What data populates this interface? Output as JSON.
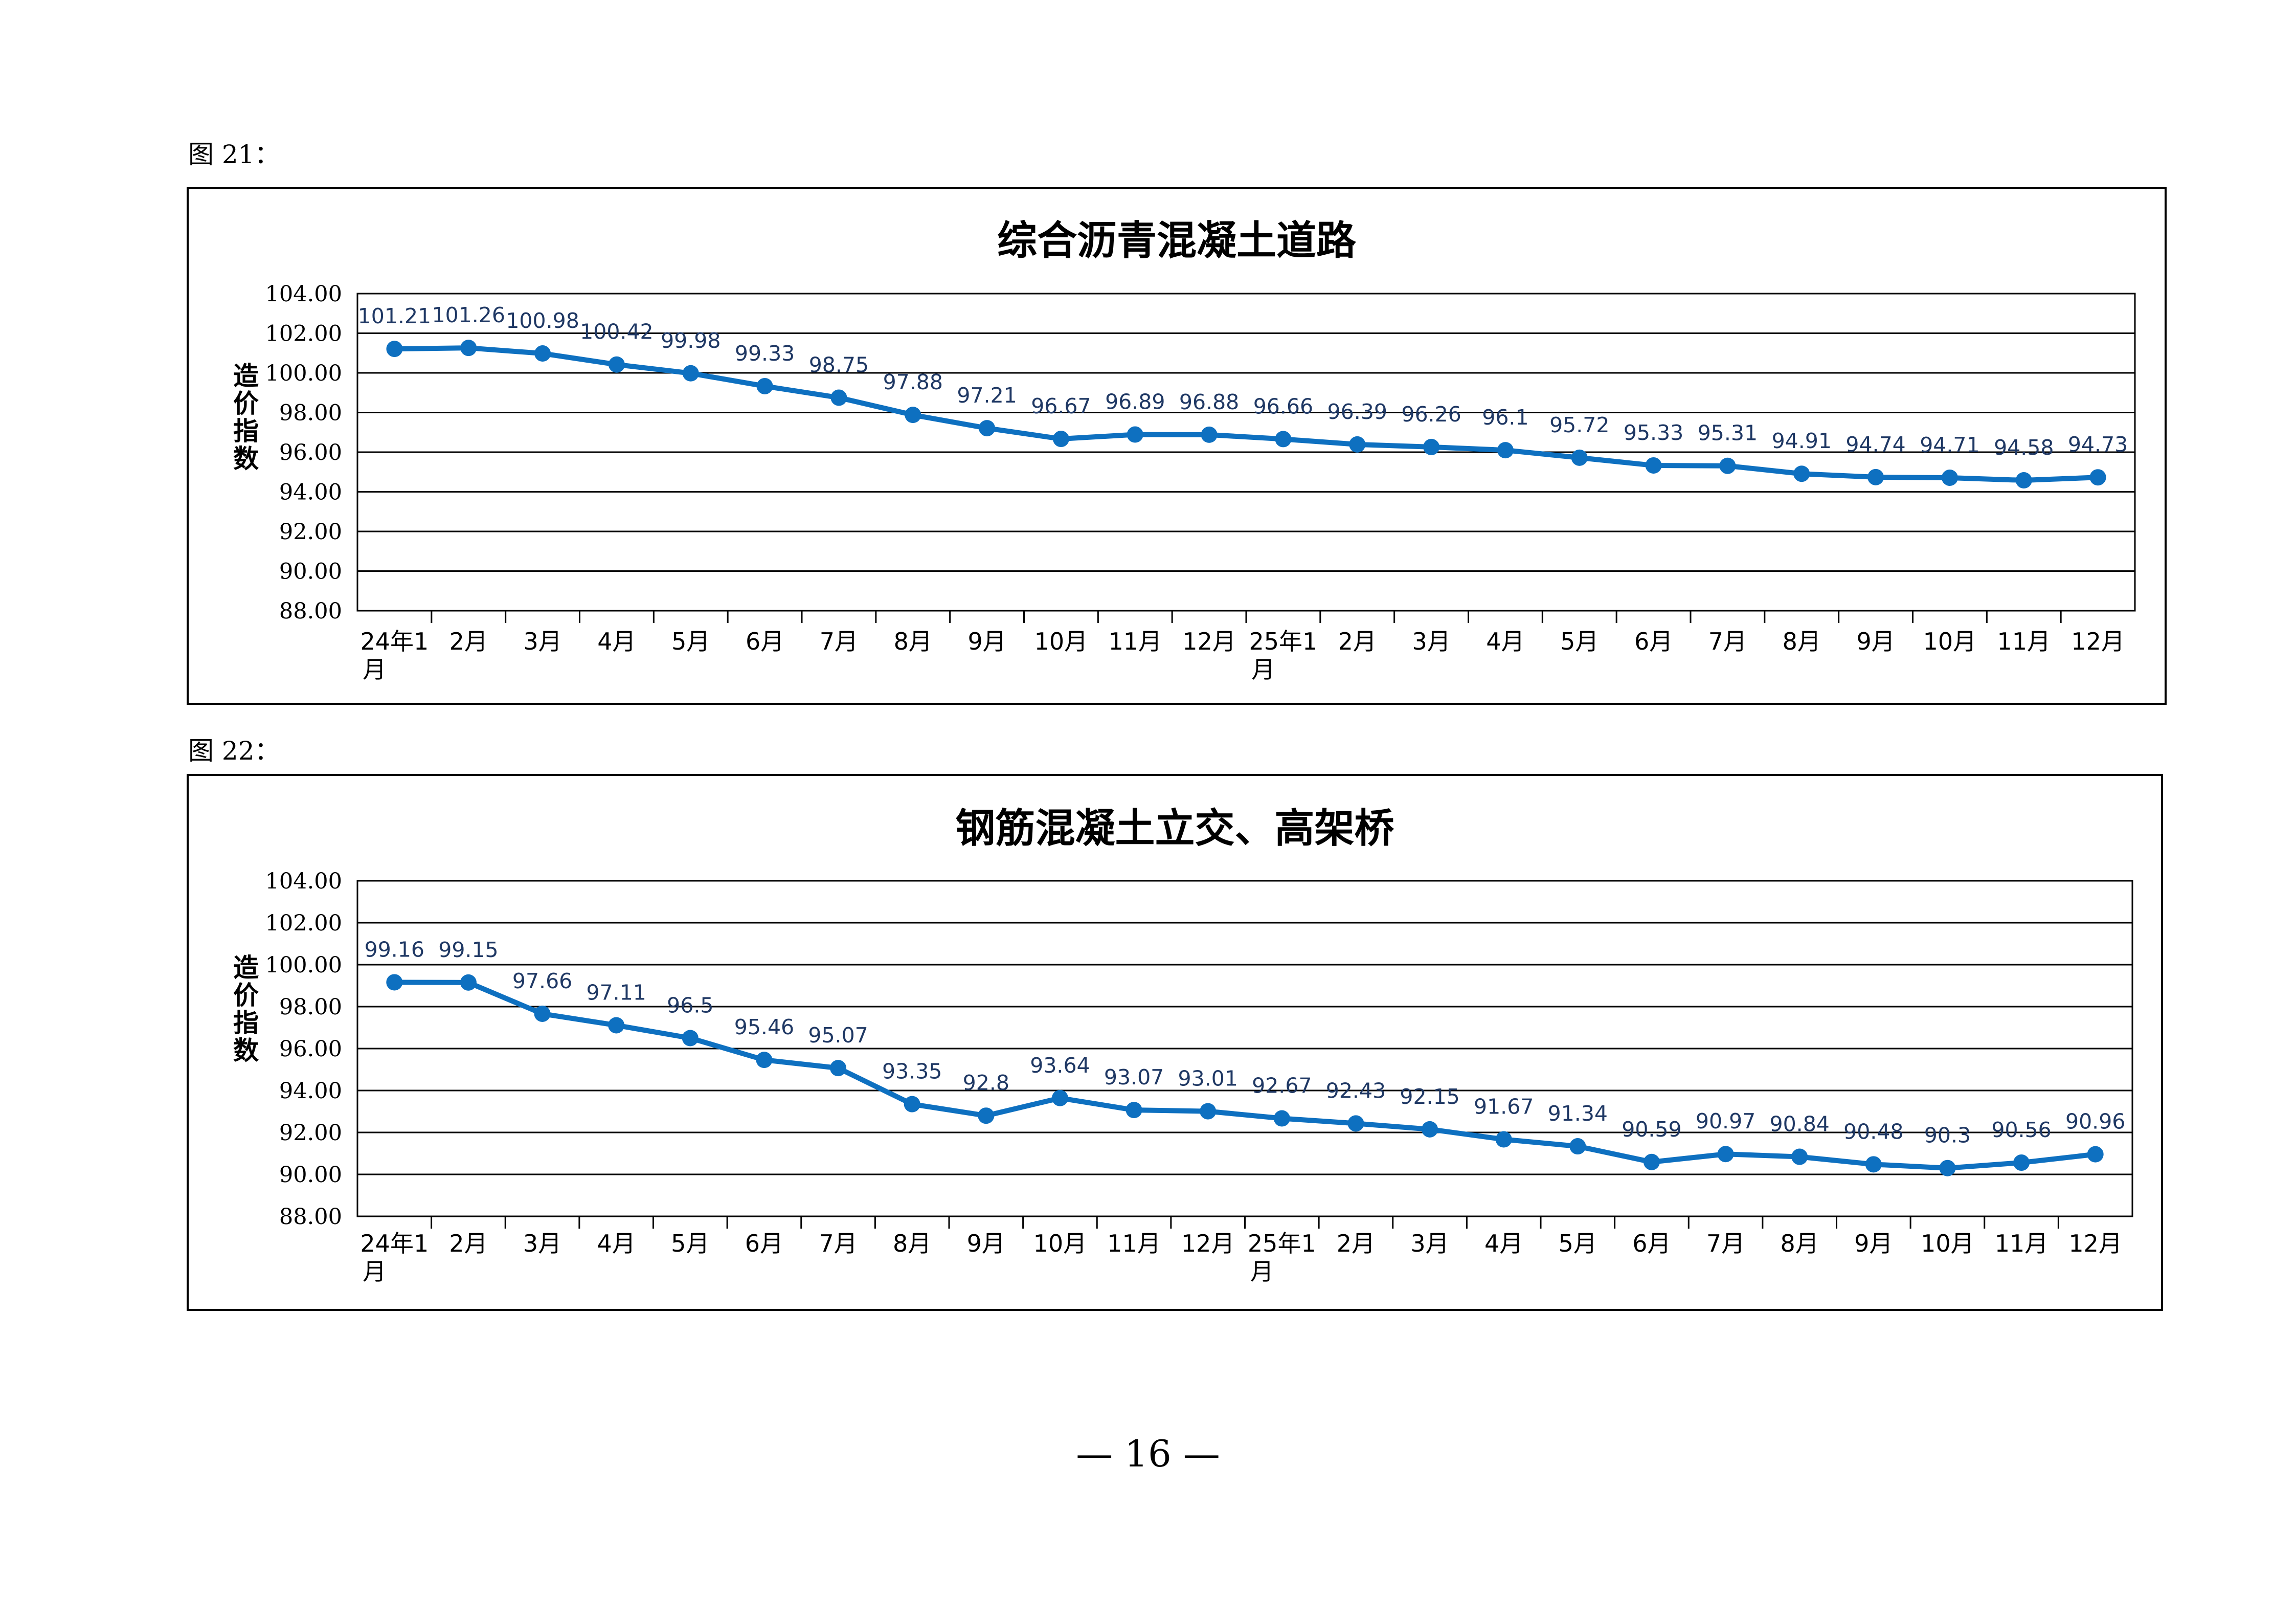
{
  "figures": [
    {
      "label": "图 21："
    },
    {
      "label": "图 22："
    }
  ],
  "page_number": "— 16 —",
  "colors": {
    "line": "#0E70C0",
    "data_label": "#1F3864",
    "grid": "#000000"
  },
  "chart_data": [
    {
      "type": "line",
      "title": "综合沥青混凝土道路",
      "ylabel": "造价指数",
      "xlabel": "",
      "ylim": [
        88,
        104
      ],
      "ytick_step": 2,
      "ytick_labels": [
        "88.00",
        "90.00",
        "92.00",
        "94.00",
        "96.00",
        "98.00",
        "100.00",
        "102.00",
        "104.00"
      ],
      "grid": true,
      "categories": [
        "24年1月",
        "2月",
        "3月",
        "4月",
        "5月",
        "6月",
        "7月",
        "8月",
        "9月",
        "10月",
        "11月",
        "12月",
        "25年1月",
        "2月",
        "3月",
        "4月",
        "5月",
        "6月",
        "7月",
        "8月",
        "9月",
        "10月",
        "11月",
        "12月"
      ],
      "series": [
        {
          "values": [
            101.21,
            101.26,
            100.98,
            100.42,
            99.98,
            99.33,
            98.75,
            97.88,
            97.21,
            96.67,
            96.89,
            96.88,
            96.66,
            96.39,
            96.26,
            96.1,
            95.72,
            95.33,
            95.31,
            94.91,
            94.74,
            94.71,
            94.58,
            94.73
          ],
          "labels": [
            "101.21",
            "101.26",
            "100.98",
            "100.42",
            "99.98",
            "99.33",
            "98.75",
            "97.88",
            "97.21",
            "96.67",
            "96.89",
            "96.88",
            "96.66",
            "96.39",
            "96.26",
            "96.1",
            "95.72",
            "95.33",
            "95.31",
            "94.91",
            "94.74",
            "94.71",
            "94.58",
            "94.73"
          ]
        }
      ]
    },
    {
      "type": "line",
      "title": "钢筋混凝土立交、高架桥",
      "ylabel": "造价指数",
      "xlabel": "",
      "ylim": [
        88,
        104
      ],
      "ytick_step": 2,
      "ytick_labels": [
        "88.00",
        "90.00",
        "92.00",
        "94.00",
        "96.00",
        "98.00",
        "100.00",
        "102.00",
        "104.00"
      ],
      "grid": true,
      "categories": [
        "24年1月",
        "2月",
        "3月",
        "4月",
        "5月",
        "6月",
        "7月",
        "8月",
        "9月",
        "10月",
        "11月",
        "12月",
        "25年1月",
        "2月",
        "3月",
        "4月",
        "5月",
        "6月",
        "7月",
        "8月",
        "9月",
        "10月",
        "11月",
        "12月"
      ],
      "series": [
        {
          "values": [
            99.16,
            99.15,
            97.66,
            97.11,
            96.5,
            95.46,
            95.07,
            93.35,
            92.8,
            93.64,
            93.07,
            93.01,
            92.67,
            92.43,
            92.15,
            91.67,
            91.34,
            90.59,
            90.97,
            90.84,
            90.48,
            90.3,
            90.56,
            90.96
          ],
          "labels": [
            "99.16",
            "99.15",
            "97.66",
            "97.11",
            "96.5",
            "95.46",
            "95.07",
            "93.35",
            "92.8",
            "93.64",
            "93.07",
            "93.01",
            "92.67",
            "92.43",
            "92.15",
            "91.67",
            "91.34",
            "90.59",
            "90.97",
            "90.84",
            "90.48",
            "90.3",
            "90.56",
            "90.96"
          ]
        }
      ]
    }
  ]
}
